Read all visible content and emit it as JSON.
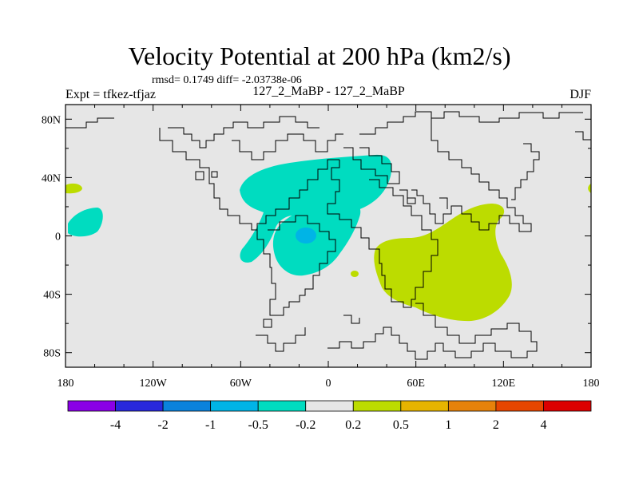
{
  "title": "Velocity Potential at 200 hPa (km2/s)",
  "stats": "rmsd= 0.1749 diff= -2.03738e-06",
  "left_label": "Expt = tfkez-tfjaz",
  "center_label": "127_2_MaBP - 127_2_MaBP",
  "right_label": "DJF",
  "x_ticks": [
    {
      "lon": -180,
      "label": "180"
    },
    {
      "lon": -120,
      "label": "120W"
    },
    {
      "lon": -60,
      "label": "60W"
    },
    {
      "lon": 0,
      "label": "0"
    },
    {
      "lon": 60,
      "label": "60E"
    },
    {
      "lon": 120,
      "label": "120E"
    },
    {
      "lon": 180,
      "label": "180"
    }
  ],
  "y_ticks": [
    {
      "lat": 80,
      "label": "80N"
    },
    {
      "lat": 40,
      "label": "40N"
    },
    {
      "lat": 0,
      "label": "0"
    },
    {
      "lat": -40,
      "label": "40S"
    },
    {
      "lat": -80,
      "label": "80S"
    }
  ],
  "colors": {
    "background_field": "#e6e6e6",
    "positive_0_2_to_0_5": "#bcdc00",
    "negative_0_5_to_0_2": "#00dcc0",
    "negative_1_to_0_5": "#00b4e6"
  },
  "colorbar": {
    "colors": [
      "#8a00e6",
      "#2828dc",
      "#0a82dc",
      "#00b4e6",
      "#00dcc0",
      "#e6e6e6",
      "#bcdc00",
      "#e6b400",
      "#e6820a",
      "#e64600",
      "#dc0000"
    ],
    "labels": [
      "-4",
      "-2",
      "-1",
      "-0.5",
      "-0.2",
      "0.2",
      "0.5",
      "1",
      "2",
      "4"
    ]
  }
}
